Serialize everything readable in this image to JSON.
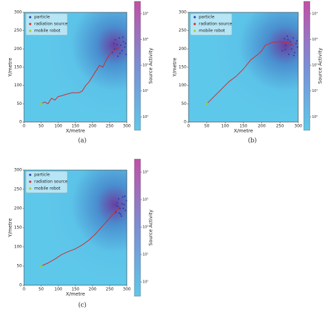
{
  "chart_data": [
    {
      "type": "line",
      "caption": "(a)",
      "x_label": "X/metre",
      "y_label": "Y/metre",
      "colorbar_label": "Source Activity",
      "xlim": [
        0,
        300
      ],
      "ylim": [
        0,
        300
      ],
      "xticks": [
        0,
        50,
        100,
        150,
        200,
        250,
        300
      ],
      "yticks": [
        0,
        50,
        100,
        150,
        200,
        250,
        300
      ],
      "colorbar_lim": [
        0.3,
        30000
      ],
      "colorbar_log": true,
      "colorbar_ticks": [
        {
          "value": 1,
          "label": "10⁰"
        },
        {
          "value": 10,
          "label": "10¹"
        },
        {
          "value": 100,
          "label": "10²"
        },
        {
          "value": 1000,
          "label": "10³"
        },
        {
          "value": 10000,
          "label": "10⁴"
        }
      ],
      "series": [
        {
          "name": "particle",
          "color": "#2b3fb0",
          "x": [
            258,
            262,
            266,
            270,
            274,
            278,
            282,
            286,
            290,
            294,
            298,
            264,
            272,
            280,
            288,
            296
          ],
          "y": [
            190,
            215,
            225,
            200,
            180,
            230,
            210,
            195,
            220,
            205,
            185,
            200,
            212,
            188,
            232,
            215
          ]
        },
        {
          "name": "radiation source",
          "color": "#d62728",
          "x": [
            50,
            60,
            70,
            80,
            90,
            100,
            110,
            120,
            140,
            160,
            170,
            180,
            190,
            200,
            210,
            220,
            230,
            240,
            250,
            260,
            270,
            280
          ],
          "y": [
            50,
            55,
            50,
            65,
            60,
            70,
            72,
            75,
            80,
            80,
            85,
            100,
            110,
            125,
            140,
            155,
            150,
            170,
            185,
            195,
            200,
            205
          ]
        },
        {
          "name": "mobile robot",
          "color": "#9acd32",
          "x": [
            50
          ],
          "y": [
            50
          ]
        }
      ]
    },
    {
      "type": "line",
      "caption": "(b)",
      "x_label": "X/metre",
      "y_label": "Y/metre",
      "colorbar_label": "Source Activity",
      "xlim": [
        0,
        300
      ],
      "ylim": [
        0,
        300
      ],
      "xticks": [
        0,
        50,
        100,
        150,
        200,
        250,
        300
      ],
      "yticks": [
        0,
        50,
        100,
        150,
        200,
        250,
        300
      ],
      "colorbar_lim": [
        0.3,
        30000
      ],
      "colorbar_log": true,
      "colorbar_ticks": [
        {
          "value": 1,
          "label": "10⁰"
        },
        {
          "value": 10,
          "label": "10¹"
        },
        {
          "value": 100,
          "label": "10²"
        },
        {
          "value": 1000,
          "label": "10³"
        },
        {
          "value": 10000,
          "label": "10⁴"
        }
      ],
      "series": [
        {
          "name": "particle",
          "color": "#2b3fb0",
          "x": [
            256,
            262,
            266,
            270,
            274,
            278,
            282,
            286,
            290,
            294,
            298,
            264,
            272,
            280,
            288,
            296
          ],
          "y": [
            195,
            228,
            210,
            235,
            185,
            220,
            200,
            230,
            190,
            215,
            205,
            198,
            225,
            212,
            182,
            222
          ]
        },
        {
          "name": "radiation source",
          "color": "#d62728",
          "x": [
            50,
            70,
            90,
            110,
            130,
            150,
            170,
            190,
            200,
            210,
            230,
            250,
            270,
            285
          ],
          "y": [
            50,
            70,
            90,
            110,
            125,
            145,
            170,
            185,
            195,
            210,
            218,
            220,
            218,
            210
          ]
        },
        {
          "name": "mobile robot",
          "color": "#9acd32",
          "x": [
            50
          ],
          "y": [
            50
          ]
        }
      ]
    },
    {
      "type": "line",
      "caption": "(c)",
      "x_label": "X/metre",
      "y_label": "Y/metre",
      "colorbar_label": "Source Activity",
      "xlim": [
        0,
        300
      ],
      "ylim": [
        0,
        300
      ],
      "xticks": [
        0,
        50,
        100,
        150,
        200,
        250,
        300
      ],
      "yticks": [
        0,
        50,
        100,
        150,
        200,
        250,
        300
      ],
      "colorbar_lim": [
        0.3,
        30000
      ],
      "colorbar_log": true,
      "colorbar_ticks": [
        {
          "value": 1,
          "label": "10⁰"
        },
        {
          "value": 10,
          "label": "10¹"
        },
        {
          "value": 100,
          "label": "10²"
        },
        {
          "value": 1000,
          "label": "10³"
        },
        {
          "value": 10000,
          "label": "10⁴"
        }
      ],
      "series": [
        {
          "name": "particle",
          "color": "#2b3fb0",
          "x": [
            268,
            272,
            276,
            280,
            284,
            288,
            292,
            296,
            299,
            274,
            282,
            290,
            286,
            278,
            294,
            270
          ],
          "y": [
            190,
            215,
            225,
            200,
            180,
            230,
            210,
            195,
            220,
            205,
            185,
            200,
            212,
            188,
            232,
            208
          ]
        },
        {
          "name": "radiation source",
          "color": "#d62728",
          "x": [
            50,
            70,
            90,
            110,
            130,
            150,
            170,
            190,
            210,
            230,
            250,
            265,
            280
          ],
          "y": [
            50,
            58,
            68,
            80,
            88,
            95,
            105,
            118,
            135,
            155,
            175,
            190,
            205
          ]
        },
        {
          "name": "mobile robot",
          "color": "#9acd32",
          "x": [
            50
          ],
          "y": [
            50
          ]
        }
      ]
    }
  ]
}
